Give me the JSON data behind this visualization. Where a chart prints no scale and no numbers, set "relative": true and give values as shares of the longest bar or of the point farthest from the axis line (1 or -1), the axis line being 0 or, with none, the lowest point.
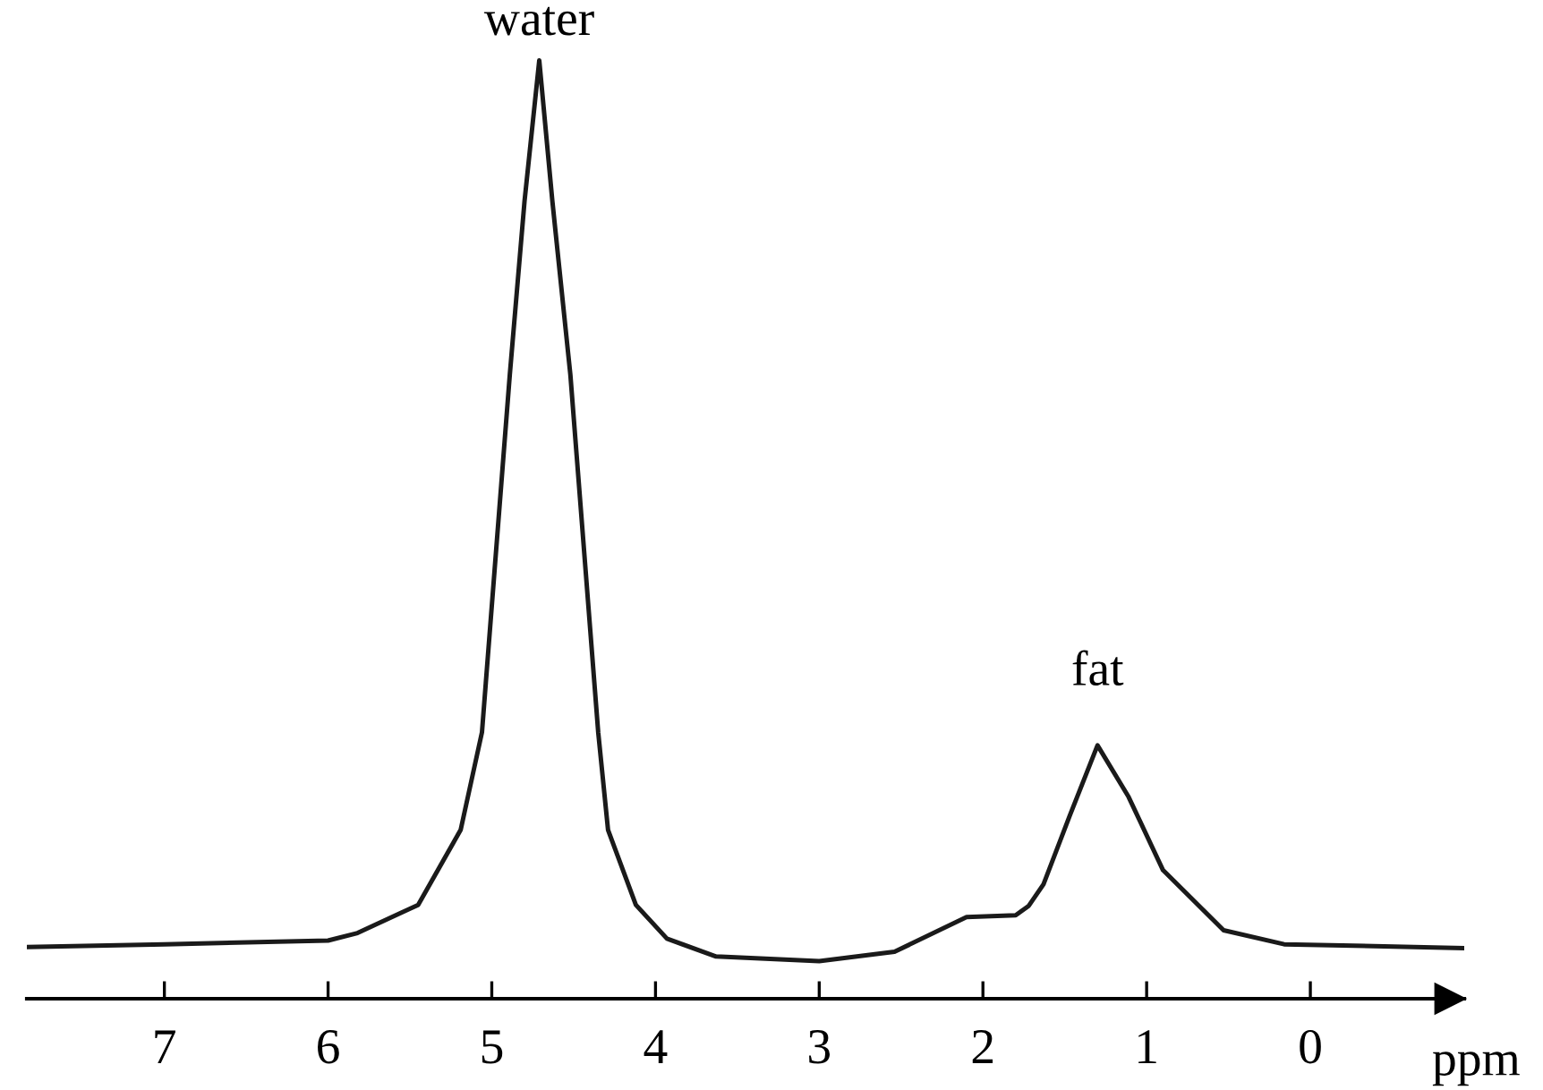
{
  "chart_data": {
    "type": "line",
    "relative": true,
    "xlabel": "ppm",
    "xlim": [
      7.84,
      -0.94
    ],
    "xticks": [
      7,
      6,
      5,
      4,
      3,
      2,
      1,
      0
    ],
    "grid": false,
    "marker": "none",
    "line_style": "solid",
    "series": [
      {
        "color": "#1a1a1a",
        "x": [
          7.84,
          7.0,
          6.0,
          5.82,
          5.45,
          5.19,
          5.06,
          4.89,
          4.8,
          4.71,
          4.63,
          4.52,
          4.35,
          4.29,
          4.12,
          3.93,
          3.63,
          3.0,
          2.54,
          2.1,
          1.8,
          1.72,
          1.63,
          1.47,
          1.3,
          1.11,
          0.9,
          0.53,
          0.16,
          -0.94
        ],
        "values": [
          0.055,
          0.058,
          0.062,
          0.07,
          0.1,
          0.18,
          0.284,
          0.665,
          0.85,
          1.0,
          0.85,
          0.665,
          0.284,
          0.18,
          0.1,
          0.064,
          0.045,
          0.04,
          0.05,
          0.087,
          0.089,
          0.099,
          0.122,
          0.195,
          0.27,
          0.215,
          0.137,
          0.073,
          0.058,
          0.054
        ]
      }
    ],
    "annotations": [
      {
        "text": "water",
        "x": 4.71,
        "y": 1.0
      },
      {
        "text": "fat",
        "x": 1.3,
        "y": 0.27
      }
    ]
  }
}
